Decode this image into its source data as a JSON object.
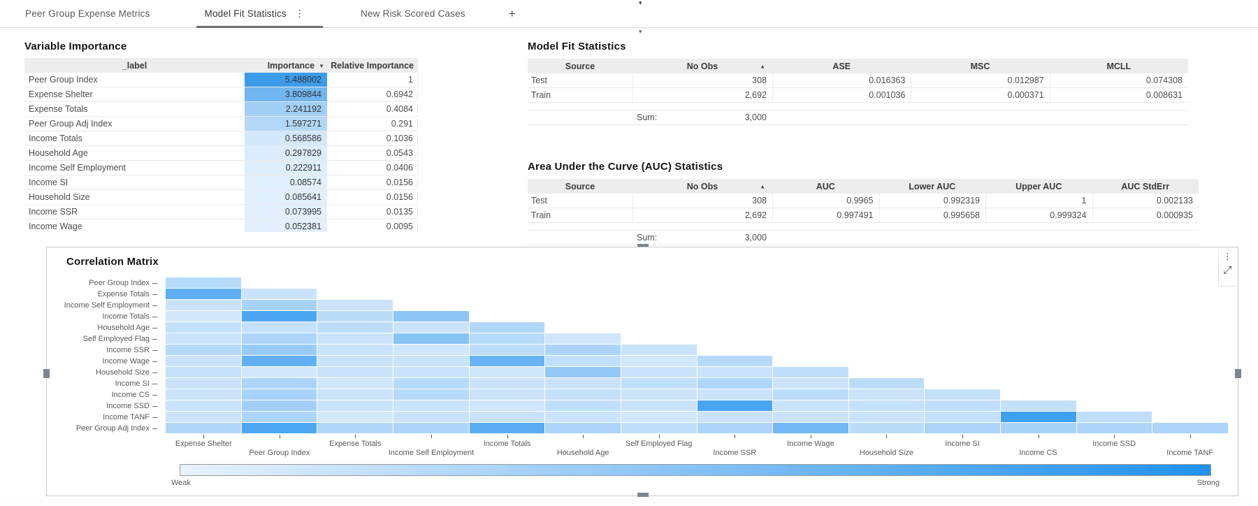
{
  "tab_bar": {
    "tabs": [
      {
        "label": "Peer Group Expense Metrics",
        "active": false
      },
      {
        "label": "Model Fit Statistics",
        "active": true
      },
      {
        "label": "New Risk Scored Cases",
        "active": false
      }
    ],
    "add_tab_label": "+",
    "kebab_glyph": "⋮",
    "collapse_caret_glyph": "▾"
  },
  "panels": {
    "variable_importance": {
      "title": "Variable Importance",
      "columns": {
        "label": "_label",
        "importance": "Importance",
        "relative": "Relative Importance"
      },
      "sort": {
        "column": "Importance",
        "direction": "descending",
        "glyph": "▼"
      },
      "rows": [
        {
          "label": "Peer Group Index",
          "importance": "5.488002",
          "relative": "1",
          "heat": 1.0
        },
        {
          "label": "Expense Shelter",
          "importance": "3.809844",
          "relative": "0.6942",
          "heat": 0.6942
        },
        {
          "label": "Expense Totals",
          "importance": "2.241192",
          "relative": "0.4084",
          "heat": 0.4084
        },
        {
          "label": "Peer Group Adj Index",
          "importance": "1.597271",
          "relative": "0.291",
          "heat": 0.291
        },
        {
          "label": "Income Totals",
          "importance": "0.568586",
          "relative": "0.1036",
          "heat": 0.1036
        },
        {
          "label": "Household Age",
          "importance": "0.297829",
          "relative": "0.0543",
          "heat": 0.0543
        },
        {
          "label": "Income Self Employment",
          "importance": "0.222911",
          "relative": "0.0406",
          "heat": 0.0406
        },
        {
          "label": "Income SI",
          "importance": "0.08574",
          "relative": "0.0156",
          "heat": 0.0156
        },
        {
          "label": "Household Size",
          "importance": "0.085641",
          "relative": "0.0156",
          "heat": 0.0156
        },
        {
          "label": "Income SSR",
          "importance": "0.073995",
          "relative": "0.0135",
          "heat": 0.0135
        },
        {
          "label": "Income Wage",
          "importance": "0.052381",
          "relative": "0.0095",
          "heat": 0.0095
        }
      ],
      "heat_light_color": "#e4f1fd",
      "heat_strong_color": "#3d9cea"
    },
    "model_fit": {
      "title": "Model Fit Statistics",
      "columns": [
        "Source",
        "No Obs",
        "ASE",
        "MSC",
        "MCLL"
      ],
      "sort": {
        "column": "No Obs",
        "direction": "ascending",
        "glyph": "▲"
      },
      "rows": [
        [
          "Test",
          "308",
          "0.016363",
          "0.012987",
          "0.074308"
        ],
        [
          "Train",
          "2,692",
          "0.001036",
          "0.000371",
          "0.008631"
        ]
      ],
      "sum_label": "Sum:",
      "sum_value": "3,000"
    },
    "auc": {
      "title": "Area Under the Curve (AUC) Statistics",
      "columns": [
        "Source",
        "No Obs",
        "AUC",
        "Lower AUC",
        "Upper AUC",
        "AUC StdErr"
      ],
      "sort": {
        "column": "No Obs",
        "direction": "ascending",
        "glyph": "▲"
      },
      "rows": [
        [
          "Test",
          "308",
          "0.9965",
          "0.992319",
          "1",
          "0.002133"
        ],
        [
          "Train",
          "2,692",
          "0.997491",
          "0.995658",
          "0.999324",
          "0.000935"
        ]
      ],
      "sum_label": "Sum:",
      "sum_value": "3,000"
    },
    "correlation": {
      "title": "Correlation Matrix",
      "kebab_glyph": "⋮",
      "expand_glyph": "⤢"
    }
  },
  "chart_data": {
    "type": "heatmap",
    "title": "Correlation Matrix",
    "x_categories": [
      "Expense Shelter",
      "Peer Group Index",
      "Expense Totals",
      "Income Self Employment",
      "Income Totals",
      "Household Age",
      "Self Employed Flag",
      "Income SSR",
      "Income Wage",
      "Household Size",
      "Income SI",
      "Income CS",
      "Income SSD",
      "Income TANF"
    ],
    "y_categories": [
      "Peer Group Index",
      "Expense Totals",
      "Income Self Employment",
      "Income Totals",
      "Household Age",
      "Self Employed Flag",
      "Income SSR",
      "Income Wage",
      "Household Size",
      "Income SI",
      "Income CS",
      "Income SSD",
      "Income TANF",
      "Peer Group Adj Index"
    ],
    "layout": "lower-triangle-staircase",
    "legend": {
      "position": "bottom",
      "min_label": "Weak",
      "max_label": "Strong"
    },
    "min_color": "#e8f2fd",
    "max_color": "#2191ee",
    "rows": [
      {
        "label": "Peer Group Index",
        "values": [
          0.25
        ]
      },
      {
        "label": "Expense Totals",
        "values": [
          0.7,
          0.15
        ]
      },
      {
        "label": "Income Self Employment",
        "values": [
          0.15,
          0.32,
          0.15
        ]
      },
      {
        "label": "Income Totals",
        "values": [
          0.1,
          0.78,
          0.22,
          0.45
        ]
      },
      {
        "label": "Household Age",
        "values": [
          0.18,
          0.18,
          0.22,
          0.15,
          0.28
        ]
      },
      {
        "label": "Self Employed Flag",
        "values": [
          0.15,
          0.3,
          0.15,
          0.48,
          0.25,
          0.12
        ]
      },
      {
        "label": "Income SSR",
        "values": [
          0.25,
          0.4,
          0.15,
          0.12,
          0.22,
          0.3,
          0.15
        ]
      },
      {
        "label": "Income Wage",
        "values": [
          0.15,
          0.68,
          0.15,
          0.15,
          0.65,
          0.2,
          0.12,
          0.25
        ]
      },
      {
        "label": "Household Size",
        "values": [
          0.18,
          0.1,
          0.15,
          0.15,
          0.12,
          0.42,
          0.15,
          0.15,
          0.2
        ]
      },
      {
        "label": "Income SI",
        "values": [
          0.15,
          0.3,
          0.12,
          0.25,
          0.15,
          0.15,
          0.2,
          0.28,
          0.15,
          0.22
        ]
      },
      {
        "label": "Income CS",
        "values": [
          0.15,
          0.32,
          0.15,
          0.25,
          0.15,
          0.18,
          0.15,
          0.15,
          0.22,
          0.15,
          0.18
        ]
      },
      {
        "label": "Income SSD",
        "values": [
          0.15,
          0.35,
          0.15,
          0.15,
          0.12,
          0.2,
          0.15,
          0.8,
          0.15,
          0.18,
          0.2,
          0.18
        ]
      },
      {
        "label": "Income TANF",
        "values": [
          0.15,
          0.3,
          0.1,
          0.15,
          0.15,
          0.15,
          0.12,
          0.15,
          0.15,
          0.15,
          0.18,
          0.85,
          0.2
        ]
      },
      {
        "label": "Peer Group Adj Index",
        "values": [
          0.28,
          0.78,
          0.28,
          0.3,
          0.72,
          0.3,
          0.2,
          0.3,
          0.6,
          0.22,
          0.3,
          0.32,
          0.3,
          0.3
        ]
      }
    ]
  }
}
